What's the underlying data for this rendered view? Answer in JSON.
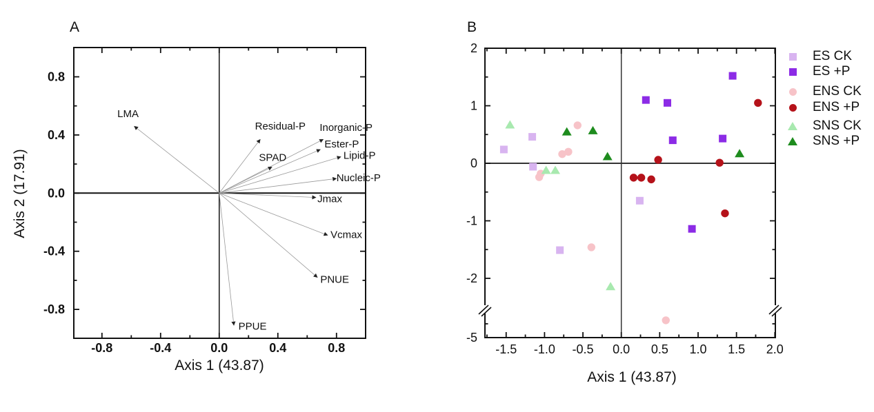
{
  "chart_data": [
    {
      "id": "panelA",
      "type": "scatter",
      "subtype": "pca-variable-arrow-biplot",
      "title": "A",
      "xlabel": "Axis 1 (43.87)",
      "ylabel": "Axis 2 (17.91)",
      "xlim": [
        -1.0,
        1.0
      ],
      "ylim": [
        -1.0,
        1.0
      ],
      "grid": false,
      "x_ticks": [
        -0.8,
        -0.4,
        0.0,
        0.4,
        0.8
      ],
      "x_tick_labels": [
        "-0.8",
        "-0.4",
        "0.0",
        "0.4",
        "0.8"
      ],
      "y_ticks": [
        0.8,
        0.4,
        0.0,
        -0.4,
        -0.8
      ],
      "y_tick_labels": [
        "0.8",
        "0.4",
        "0.0",
        "-0.4",
        "-0.8"
      ],
      "minor_tick_step": 0.2,
      "arrow_color": "#999999",
      "arrowhead_color": "#222222",
      "arrows": [
        {
          "label": "LMA",
          "x": -0.58,
          "y": 0.46,
          "label_dx": -9,
          "label_dy": -18
        },
        {
          "label": "Residual-P",
          "x": 0.28,
          "y": 0.37,
          "label_dx": 29,
          "label_dy": -19
        },
        {
          "label": "Inorganic-P",
          "x": 0.71,
          "y": 0.37,
          "label_dx": 33,
          "label_dy": -17
        },
        {
          "label": "Ester-P",
          "x": 0.69,
          "y": 0.3,
          "label_dx": 31,
          "label_dy": -8
        },
        {
          "label": "SPAD",
          "x": 0.36,
          "y": 0.18,
          "label_dx": 1,
          "label_dy": -14
        },
        {
          "label": "Lipid-P",
          "x": 0.83,
          "y": 0.25,
          "label_dx": 27,
          "label_dy": -2
        },
        {
          "label": "Nucleic-P",
          "x": 0.8,
          "y": 0.1,
          "label_dx": 32,
          "label_dy": -1
        },
        {
          "label": "Jmax",
          "x": 0.66,
          "y": -0.03,
          "label_dx": 20,
          "label_dy": 2
        },
        {
          "label": "Vcmax",
          "x": 0.74,
          "y": -0.29,
          "label_dx": 27,
          "label_dy": -1
        },
        {
          "label": "PNUE",
          "x": 0.67,
          "y": -0.58,
          "label_dx": 25,
          "label_dy": 3
        },
        {
          "label": "PPUE",
          "x": 0.1,
          "y": -0.91,
          "label_dx": 27,
          "label_dy": 1
        }
      ]
    },
    {
      "id": "panelB",
      "type": "scatter",
      "title": "B",
      "xlabel": "Axis 1 (43.87)",
      "ylabel": "",
      "xlim": [
        -1.8,
        2.0
      ],
      "ylim_linear": [
        -2.5,
        2.0
      ],
      "y_break": {
        "from": -2.5,
        "to": -5.0
      },
      "grid": false,
      "legend_position": "right",
      "x_ticks": [
        -1.5,
        -1.0,
        -0.5,
        0.0,
        0.5,
        1.0,
        1.5,
        2.0
      ],
      "x_tick_labels": [
        "-1.5",
        "-1.0",
        "-0.5",
        "0.0",
        "0.5",
        "1.0",
        "1.5",
        "2.0"
      ],
      "x_minor_step": 0.25,
      "y_ticks": [
        2,
        1,
        0,
        -1,
        -2
      ],
      "y_tick_labels": [
        "2",
        "1",
        "0",
        "-1",
        "-2"
      ],
      "y_break_label": "-5",
      "y_minor_step": 0.5,
      "series": [
        {
          "name": "ES CK",
          "marker": "square",
          "color": "#d8b4f0",
          "points": [
            [
              -1.53,
              0.24
            ],
            [
              -1.16,
              0.46
            ],
            [
              -1.15,
              -0.06
            ],
            [
              0.24,
              -0.65
            ],
            [
              -0.8,
              -1.51
            ]
          ]
        },
        {
          "name": "ES +P",
          "marker": "square",
          "color": "#8c2be6",
          "points": [
            [
              0.32,
              1.1
            ],
            [
              0.6,
              1.05
            ],
            [
              1.45,
              1.52
            ],
            [
              0.67,
              0.4
            ],
            [
              1.32,
              0.43
            ],
            [
              0.92,
              -1.14
            ]
          ]
        },
        {
          "name": "ENS CK",
          "marker": "circle",
          "color": "#f7c3c8",
          "points": [
            [
              -0.57,
              0.66
            ],
            [
              -0.69,
              0.2
            ],
            [
              -0.77,
              0.16
            ],
            [
              -1.05,
              -0.18
            ],
            [
              -1.07,
              -0.24
            ],
            [
              -0.39,
              -1.46
            ],
            [
              0.58,
              -3.6
            ]
          ]
        },
        {
          "name": "ENS +P",
          "marker": "circle",
          "color": "#b5121a",
          "points": [
            [
              1.78,
              1.05
            ],
            [
              0.48,
              0.06
            ],
            [
              1.28,
              0.01
            ],
            [
              0.16,
              -0.25
            ],
            [
              0.26,
              -0.25
            ],
            [
              0.39,
              -0.28
            ],
            [
              1.35,
              -0.87
            ]
          ]
        },
        {
          "name": "SNS CK",
          "marker": "triangle",
          "color": "#a8e9af",
          "points": [
            [
              -1.45,
              0.67
            ],
            [
              -0.98,
              -0.12
            ],
            [
              -0.86,
              -0.12
            ],
            [
              -0.14,
              -2.14
            ]
          ]
        },
        {
          "name": "SNS +P",
          "marker": "triangle",
          "color": "#1e8c1e",
          "points": [
            [
              -0.71,
              0.55
            ],
            [
              -0.37,
              0.57
            ],
            [
              -0.18,
              0.12
            ],
            [
              1.54,
              0.17
            ]
          ]
        }
      ]
    }
  ]
}
